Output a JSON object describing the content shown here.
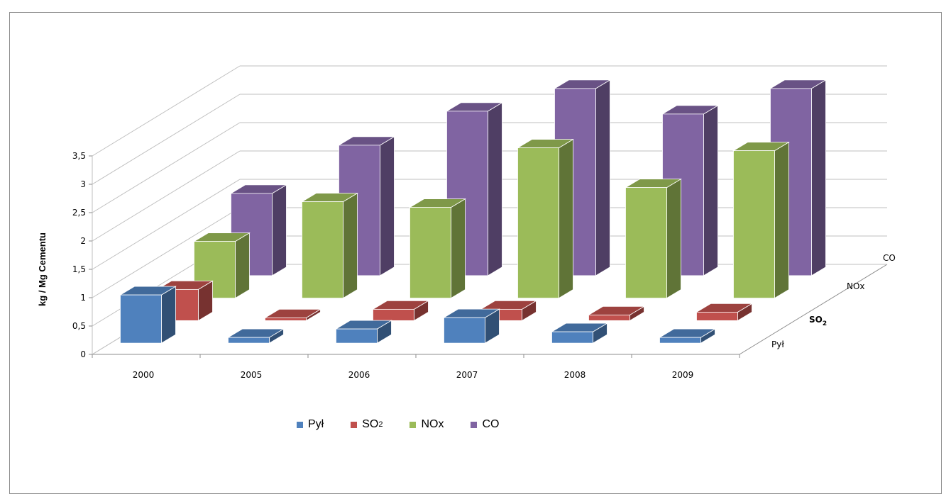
{
  "chart_data": {
    "type": "bar",
    "ylabel": "kg / Mg Cementu",
    "ylim": [
      0,
      3.5
    ],
    "yticks": [
      "0",
      "0,5",
      "1",
      "1,5",
      "2",
      "2,5",
      "3",
      "3,5"
    ],
    "categories": [
      "2000",
      "2005",
      "2006",
      "2007",
      "2008",
      "2009"
    ],
    "depth_labels": [
      "Pył",
      "SO2",
      "NOx",
      "CO"
    ],
    "grid": true,
    "legend_position": "bottom",
    "series": [
      {
        "name": "Pył",
        "values": [
          0.85,
          0.1,
          0.25,
          0.45,
          0.2,
          0.1
        ],
        "color": "#4f81bd"
      },
      {
        "name": "SO2",
        "values": [
          0.55,
          0.05,
          0.2,
          0.2,
          0.1,
          0.15
        ],
        "color": "#c0504d"
      },
      {
        "name": "NOx",
        "values": [
          1.0,
          1.7,
          1.6,
          2.65,
          1.95,
          2.6
        ],
        "color": "#9bbb59"
      },
      {
        "name": "CO",
        "values": [
          1.45,
          2.3,
          2.9,
          3.3,
          2.85,
          3.3
        ],
        "color": "#8064a2"
      }
    ]
  },
  "legend": {
    "items": [
      {
        "label": "Pył",
        "sub": "",
        "color": "#4f81bd"
      },
      {
        "label": "SO",
        "sub": "2",
        "color": "#c0504d"
      },
      {
        "label": "NOx",
        "sub": "",
        "color": "#9bbb59"
      },
      {
        "label": "CO",
        "sub": "",
        "color": "#8064a2"
      }
    ]
  }
}
